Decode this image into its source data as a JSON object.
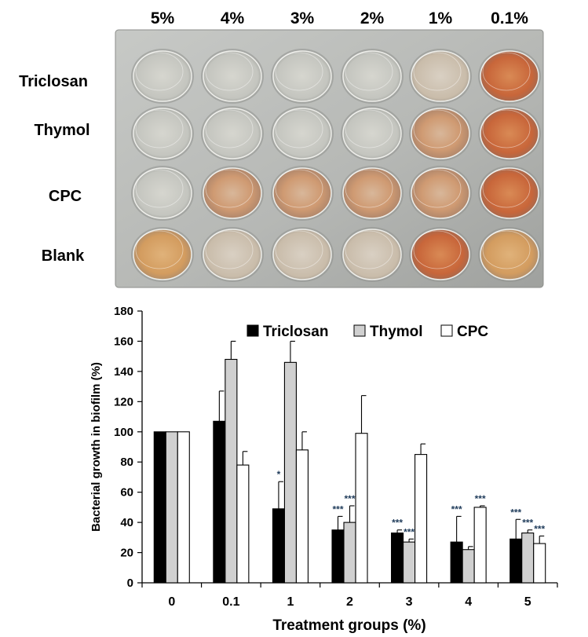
{
  "plate": {
    "column_labels": [
      "5%",
      "4%",
      "3%",
      "2%",
      "1%",
      "0.1%"
    ],
    "row_labels": [
      "Triclosan",
      "Thymol",
      "CPC",
      "Blank"
    ]
  },
  "chart_data": {
    "type": "bar",
    "title": "",
    "xlabel": "Treatment groups (%)",
    "ylabel": "Bacterial growth in biofilm (%)",
    "categories": [
      "0",
      "0.1",
      "1",
      "2",
      "3",
      "4",
      "5"
    ],
    "ylim": [
      0,
      180
    ],
    "yticks": [
      0,
      20,
      40,
      60,
      80,
      100,
      120,
      140,
      160,
      180
    ],
    "legend_position": "top-right",
    "series": [
      {
        "name": "Triclosan",
        "fill": "#000000",
        "values": [
          100,
          107,
          49,
          35,
          33,
          27,
          29
        ],
        "errors": [
          0,
          20,
          18,
          9,
          2,
          17,
          13
        ],
        "significance": [
          "",
          "",
          "*",
          "***",
          "***",
          "***",
          "***"
        ]
      },
      {
        "name": "Thymol",
        "fill": "#d0d0d0",
        "values": [
          100,
          148,
          146,
          40,
          27,
          22,
          33
        ],
        "errors": [
          0,
          12,
          14,
          11,
          2,
          2,
          2
        ],
        "significance": [
          "",
          "",
          "",
          "***",
          "***",
          "",
          "***"
        ]
      },
      {
        "name": "CPC",
        "fill": "#ffffff",
        "values": [
          100,
          78,
          88,
          99,
          85,
          50,
          26
        ],
        "errors": [
          0,
          9,
          12,
          25,
          7,
          1,
          5
        ],
        "significance": [
          "",
          "",
          "",
          "",
          "",
          "***",
          "***"
        ]
      }
    ]
  }
}
